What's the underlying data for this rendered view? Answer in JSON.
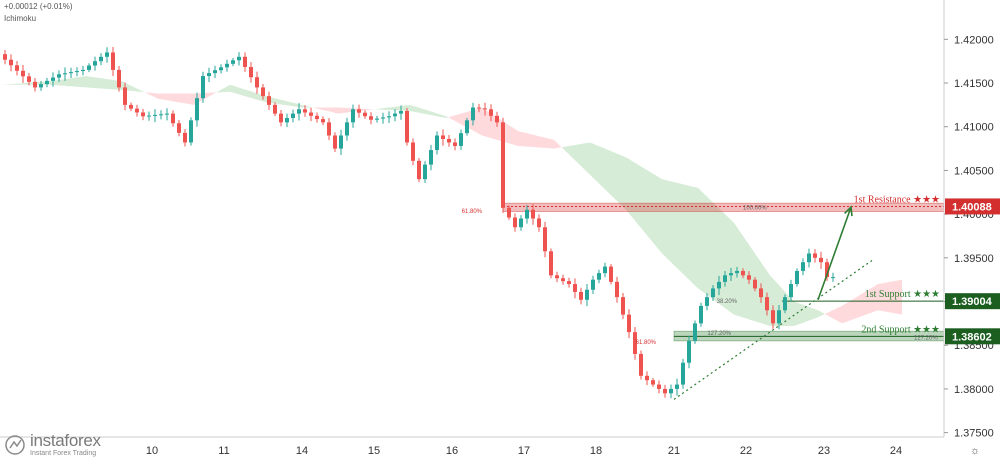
{
  "header": {
    "change": "+0.00012 (+0.01%)",
    "indicator": "Ichimoku"
  },
  "branding": {
    "name": "instaforex",
    "tagline": "Instant Forex Trading"
  },
  "chart_data": {
    "type": "candlestick",
    "ylim": [
      1.3745,
      1.4245
    ],
    "y_ticks": [
      "1.42000",
      "1.41500",
      "1.41000",
      "1.40500",
      "1.40000",
      "1.39500",
      "1.39000",
      "1.38500",
      "1.38000",
      "1.37500"
    ],
    "y_tick_values": [
      1.42,
      1.415,
      1.41,
      1.405,
      1.4,
      1.395,
      1.39,
      1.385,
      1.38,
      1.375
    ],
    "x_ticks": [
      "10",
      "11",
      "14",
      "15",
      "16",
      "17",
      "18",
      "21",
      "22",
      "23",
      "24"
    ],
    "x_tick_bars": [
      25,
      37,
      50,
      62,
      75,
      87,
      99,
      112,
      124,
      137,
      149
    ],
    "bar_count": 165,
    "anchors": [
      [
        0,
        1.4183
      ],
      [
        6,
        1.4145
      ],
      [
        10,
        1.416
      ],
      [
        14,
        1.4165
      ],
      [
        18,
        1.4185
      ],
      [
        21,
        1.4125
      ],
      [
        24,
        1.4112
      ],
      [
        28,
        1.4115
      ],
      [
        31,
        1.4082
      ],
      [
        34,
        1.4158
      ],
      [
        37,
        1.4168
      ],
      [
        40,
        1.418
      ],
      [
        43,
        1.4145
      ],
      [
        47,
        1.4105
      ],
      [
        50,
        1.412
      ],
      [
        54,
        1.4105
      ],
      [
        56,
        1.4075
      ],
      [
        59,
        1.412
      ],
      [
        62,
        1.4108
      ],
      [
        65,
        1.4112
      ],
      [
        67,
        1.4118
      ],
      [
        68,
        1.4082
      ],
      [
        70,
        1.404
      ],
      [
        73,
        1.409
      ],
      [
        76,
        1.4078
      ],
      [
        79,
        1.4122
      ],
      [
        81,
        1.412
      ],
      [
        83,
        1.4105
      ],
      [
        83.3,
        1.4015
      ],
      [
        86,
        1.3985
      ],
      [
        88,
        1.4005
      ],
      [
        90,
        1.3985
      ],
      [
        92,
        1.393
      ],
      [
        95,
        1.392
      ],
      [
        97,
        1.3902
      ],
      [
        99,
        1.3925
      ],
      [
        101,
        1.394
      ],
      [
        103,
        1.3905
      ],
      [
        105,
        1.3865
      ],
      [
        107,
        1.3815
      ],
      [
        109,
        1.3805
      ],
      [
        111,
        1.3795
      ],
      [
        113,
        1.3805
      ],
      [
        115,
        1.3855
      ],
      [
        117,
        1.3895
      ],
      [
        119,
        1.3915
      ],
      [
        121,
        1.393
      ],
      [
        123,
        1.3935
      ],
      [
        125,
        1.3925
      ],
      [
        127,
        1.3905
      ],
      [
        129,
        1.3875
      ],
      [
        131,
        1.3905
      ],
      [
        133,
        1.3935
      ],
      [
        135,
        1.3955
      ],
      [
        137,
        1.3945
      ],
      [
        138,
        1.3928
      ]
    ],
    "cloud": {
      "span_a": [
        [
          0,
          1.4148
        ],
        [
          8,
          1.4152
        ],
        [
          14,
          1.4158
        ],
        [
          20,
          1.4152
        ],
        [
          26,
          1.4132
        ],
        [
          32,
          1.4125
        ],
        [
          38,
          1.4148
        ],
        [
          44,
          1.4135
        ],
        [
          50,
          1.4125
        ],
        [
          56,
          1.4115
        ],
        [
          62,
          1.412
        ],
        [
          68,
          1.4125
        ],
        [
          74,
          1.4112
        ],
        [
          80,
          1.409
        ],
        [
          86,
          1.4078
        ],
        [
          92,
          1.4075
        ],
        [
          98,
          1.4082
        ],
        [
          104,
          1.4065
        ],
        [
          110,
          1.404
        ],
        [
          116,
          1.403
        ],
        [
          122,
          1.399
        ],
        [
          128,
          1.393
        ],
        [
          132,
          1.39
        ],
        [
          136,
          1.389
        ],
        [
          140,
          1.3875
        ],
        [
          146,
          1.389
        ],
        [
          150,
          1.3885
        ]
      ],
      "span_b": [
        [
          0,
          1.4148
        ],
        [
          8,
          1.4148
        ],
        [
          14,
          1.4145
        ],
        [
          20,
          1.4142
        ],
        [
          26,
          1.4138
        ],
        [
          32,
          1.4138
        ],
        [
          38,
          1.414
        ],
        [
          44,
          1.4128
        ],
        [
          50,
          1.4122
        ],
        [
          56,
          1.4122
        ],
        [
          62,
          1.412
        ],
        [
          68,
          1.4118
        ],
        [
          74,
          1.411
        ],
        [
          80,
          1.4122
        ],
        [
          86,
          1.4095
        ],
        [
          92,
          1.4085
        ],
        [
          98,
          1.4045
        ],
        [
          104,
          1.4005
        ],
        [
          110,
          1.3955
        ],
        [
          116,
          1.3915
        ],
        [
          122,
          1.3885
        ],
        [
          128,
          1.3872
        ],
        [
          132,
          1.3872
        ],
        [
          136,
          1.3882
        ],
        [
          140,
          1.3895
        ],
        [
          146,
          1.392
        ],
        [
          150,
          1.3925
        ]
      ]
    },
    "levels": [
      {
        "name": "1st Resistance",
        "label": "1st Resistance ★★★",
        "price": 1.40088,
        "price_label": "1.40088",
        "color": "#d32f2f",
        "zone": [
          1.4003,
          1.40125
        ],
        "fib_label": "100.00%",
        "start_bar": 83.5
      },
      {
        "name": "1st Support",
        "label": "1st Support ★★★",
        "price": 1.39004,
        "price_label": "1.39004",
        "color": "#2e7d32",
        "zone": null,
        "fib_label": "",
        "start_bar": 130
      },
      {
        "name": "2nd Support",
        "label": "2nd Support ★★★",
        "price": 1.38602,
        "price_label": "1.38602",
        "color": "#2e7d32",
        "zone": [
          1.3855,
          1.3866
        ],
        "fib_label": "127.20%",
        "start_bar": 112
      }
    ],
    "annotations": [
      {
        "text": "61.80%",
        "bar": 80,
        "price": 1.4005,
        "color": "#d32f2f"
      },
      {
        "text": "61.80%",
        "bar": 109,
        "price": 1.3855,
        "color": "#d32f2f"
      },
      {
        "text": "38.20%",
        "bar": 122.5,
        "price": 1.3902,
        "color": "#666666"
      },
      {
        "text": "127.20%",
        "bar": 121.5,
        "price": 1.3865,
        "color": "#666666"
      }
    ],
    "trendline": {
      "from": [
        112,
        1.3788
      ],
      "to": [
        145,
        1.3947
      ],
      "color": "#2e7d32"
    },
    "arrow": {
      "from": [
        136,
        1.3902
      ],
      "to": [
        141.5,
        1.4008
      ],
      "color": "#2e7d32"
    },
    "colors": {
      "up": "#26a69a",
      "down": "#ef5350",
      "cloud_green": "#c8e6c9",
      "cloud_red": "#ffcdd2",
      "axis_text": "#333333"
    }
  }
}
